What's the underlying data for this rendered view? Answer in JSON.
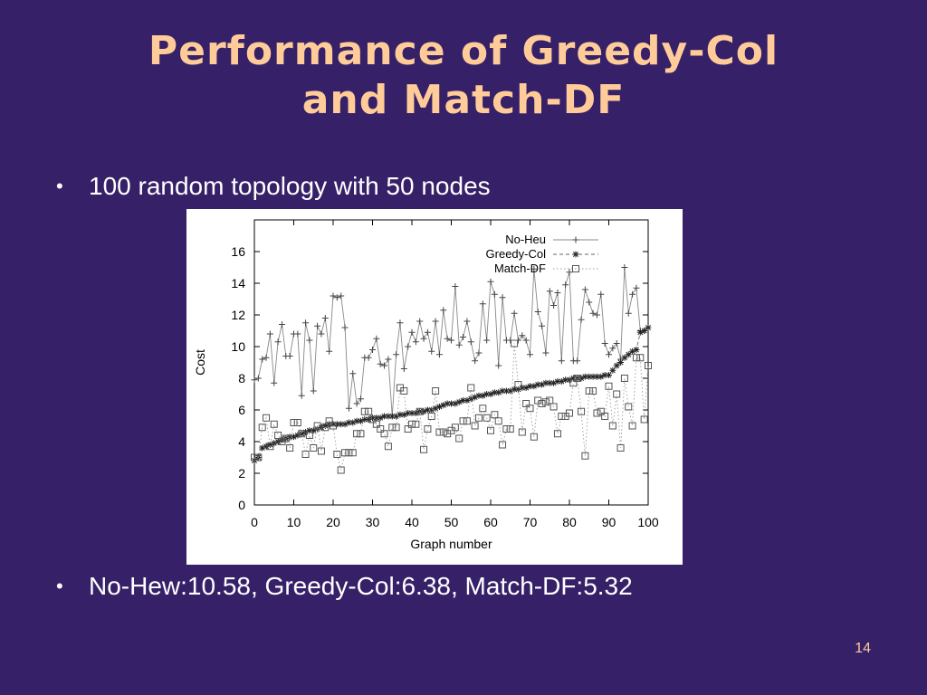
{
  "slide": {
    "title_line1": "Performance of Greedy-Col",
    "title_line2": "and Match-DF",
    "bullet1": "100 random topology with 50 nodes",
    "bullet2": "No-Hew:10.58, Greedy-Col:6.38, Match-DF:5.32",
    "bullet_symbol": "•",
    "page_number": "14",
    "colors": {
      "background": "#362068",
      "title": "#ffcc99",
      "text": "#ffffff"
    }
  },
  "chart_data": {
    "type": "line",
    "xlabel": "Graph number",
    "ylabel": "Cost",
    "xlim": [
      0,
      100
    ],
    "ylim": [
      0,
      18
    ],
    "xticks": [
      0,
      10,
      20,
      30,
      40,
      50,
      60,
      70,
      80,
      90,
      100
    ],
    "yticks": [
      0,
      2,
      4,
      6,
      8,
      10,
      12,
      14,
      16
    ],
    "legend_position": "top-right",
    "x_start": 0,
    "series": [
      {
        "name": "No-Heu",
        "marker": "plus",
        "linestyle": "solid",
        "values": [
          7.9,
          8,
          9.2,
          9.3,
          10.8,
          7.7,
          10.3,
          11.4,
          9.4,
          9.4,
          10.8,
          10.8,
          6.9,
          11.5,
          10.4,
          7.2,
          11.3,
          10.8,
          11.8,
          9.7,
          13.2,
          13.1,
          13.2,
          11.2,
          6.1,
          8.3,
          6.4,
          6.7,
          9.3,
          9.3,
          9.8,
          10.5,
          8.9,
          8.8,
          9.2,
          5.6,
          9.5,
          11.5,
          8.6,
          10,
          10.9,
          10.3,
          11.6,
          10.5,
          10.9,
          9.7,
          11.6,
          9.5,
          12.3,
          10.5,
          10.4,
          13.8,
          10.1,
          10.6,
          11.6,
          10.3,
          9.1,
          9.6,
          12.7,
          10.4,
          14.1,
          13.3,
          8.8,
          13.1,
          10.4,
          10.4,
          12.1,
          10.4,
          10.7,
          10.4,
          9.5,
          14.9,
          12.2,
          11.3,
          9.6,
          13.5,
          12.6,
          13.4,
          9.1,
          13.9,
          14.7,
          9.1,
          9.1,
          11.7,
          13.6,
          12.8,
          12.1,
          12,
          13.3,
          10.2,
          9.5,
          9.9,
          10.2,
          9.2,
          15,
          12.1,
          13.3,
          13.7,
          11,
          11,
          11.2
        ]
      },
      {
        "name": "Greedy-Col",
        "marker": "star",
        "linestyle": "dashed",
        "values": [
          2.8,
          3,
          3.6,
          3.7,
          3.8,
          3.9,
          4,
          4.1,
          4.2,
          4.3,
          4.3,
          4.4,
          4.5,
          4.6,
          4.7,
          4.7,
          4.8,
          4.9,
          5,
          5.1,
          5.1,
          5.1,
          5.1,
          5.1,
          5.2,
          5.2,
          5.3,
          5.3,
          5.4,
          5.4,
          5.5,
          5.5,
          5.5,
          5.6,
          5.6,
          5.6,
          5.6,
          5.7,
          5.7,
          5.8,
          5.8,
          5.8,
          5.9,
          5.9,
          6,
          6,
          6.1,
          6.2,
          6.3,
          6.4,
          6.4,
          6.4,
          6.5,
          6.6,
          6.6,
          6.7,
          6.8,
          6.9,
          6.9,
          7,
          7,
          7.1,
          7.1,
          7.2,
          7.2,
          7.2,
          7.3,
          7.3,
          7.4,
          7.4,
          7.5,
          7.5,
          7.6,
          7.6,
          7.7,
          7.7,
          7.7,
          7.8,
          7.8,
          7.9,
          7.9,
          8,
          8,
          8,
          8.1,
          8.1,
          8.1,
          8.1,
          8.1,
          8.2,
          8.2,
          8.5,
          8.8,
          9,
          9.3,
          9.5,
          9.7,
          9.8,
          10.9,
          11,
          11.2
        ]
      },
      {
        "name": "Match-DF",
        "marker": "square",
        "linestyle": "dotted",
        "values": [
          3,
          3,
          4.9,
          5.5,
          3.7,
          5.1,
          4.4,
          4,
          4.2,
          3.6,
          5.2,
          5.2,
          4.5,
          3.2,
          4.4,
          3.6,
          5,
          3.4,
          4.9,
          5.3,
          5,
          3.2,
          2.2,
          3.3,
          3.3,
          3.3,
          4.5,
          4.5,
          5.9,
          5.9,
          5.4,
          5.1,
          4.8,
          4.5,
          3.7,
          4.9,
          4.9,
          7.4,
          7.2,
          4.8,
          5.1,
          5.1,
          5.9,
          3.5,
          4.8,
          5.6,
          7.2,
          4.6,
          4.6,
          4.5,
          4.7,
          4.9,
          4.2,
          5.3,
          5.3,
          7.4,
          5,
          5.5,
          6.1,
          5.5,
          4.7,
          5.7,
          5.3,
          3.8,
          4.8,
          4.8,
          10.2,
          7.6,
          4.6,
          6.4,
          6.1,
          4.3,
          6.6,
          6.4,
          6.5,
          6.6,
          6.2,
          4.5,
          5.6,
          5.6,
          5.8,
          7.7,
          8,
          5.9,
          3.1,
          7.2,
          7.2,
          5.8,
          5.9,
          5.6,
          7.5,
          5,
          7,
          3.6,
          8,
          6.2,
          5,
          9.3,
          9.3,
          5.4,
          8.8
        ]
      }
    ]
  }
}
